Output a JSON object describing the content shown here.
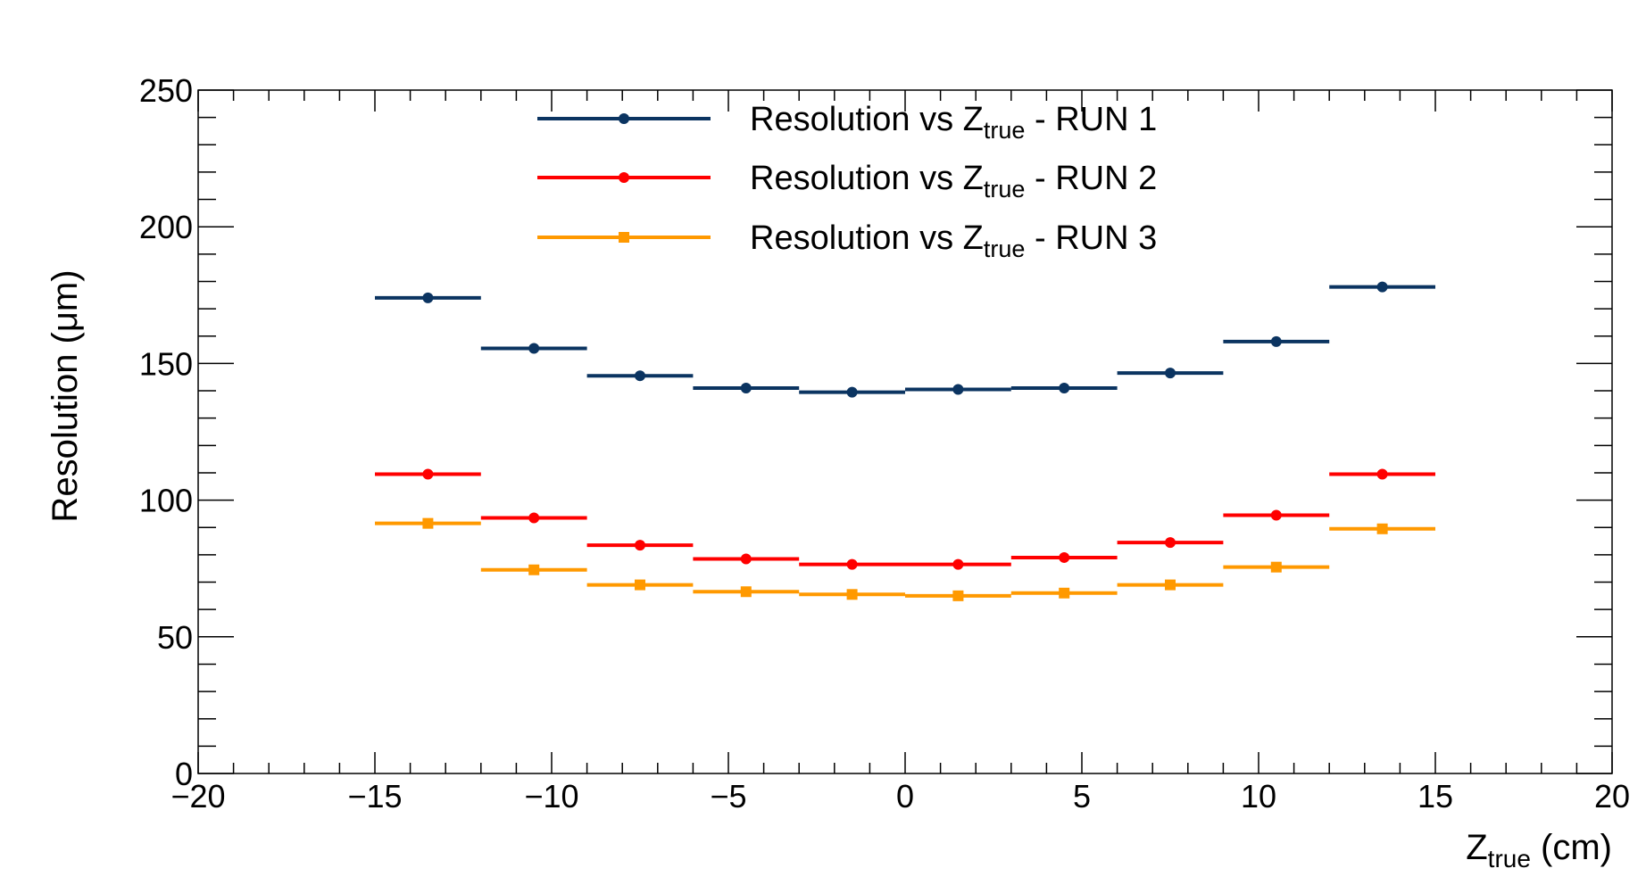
{
  "chart_data": {
    "type": "scatter",
    "xlabel": {
      "main": "Z",
      "sub": "true",
      "rest": " (cm)"
    },
    "ylabel": "Resolution (μm)",
    "xlim": [
      -20,
      20
    ],
    "ylim": [
      0,
      250
    ],
    "x_ticks": [
      "−20",
      "−15",
      "−10",
      "−5",
      "0",
      "5",
      "10",
      "15",
      "20"
    ],
    "y_ticks": [
      "0",
      "50",
      "100",
      "150",
      "200",
      "250"
    ],
    "grid": false,
    "legend_position": "top-center",
    "bin_edges": [
      -15,
      -12,
      -9,
      -6,
      -3,
      0,
      3,
      6,
      9,
      12,
      15
    ],
    "x": [
      -13.5,
      -10.5,
      -7.5,
      -4.5,
      -1.5,
      1.5,
      4.5,
      7.5,
      10.5,
      13.5
    ],
    "series": [
      {
        "name": {
          "pre": "Resolution vs Z",
          "sub": "true",
          "post": " - RUN 1"
        },
        "color": "#0b3461",
        "marker": "circle",
        "values": [
          174,
          155.5,
          145.5,
          141,
          139.5,
          140.5,
          141,
          146.5,
          158,
          178
        ]
      },
      {
        "name": {
          "pre": "Resolution vs Z",
          "sub": "true",
          "post": " - RUN 2"
        },
        "color": "#ff0000",
        "marker": "circle",
        "values": [
          109.5,
          93.5,
          83.5,
          78.5,
          76.5,
          76.5,
          79,
          84.5,
          94.5,
          109.5
        ]
      },
      {
        "name": {
          "pre": "Resolution vs Z",
          "sub": "true",
          "post": " - RUN 3"
        },
        "color": "#ff9900",
        "marker": "square",
        "values": [
          91.5,
          74.5,
          69,
          66.5,
          65.5,
          65,
          66,
          69,
          75.5,
          89.5
        ]
      }
    ]
  }
}
